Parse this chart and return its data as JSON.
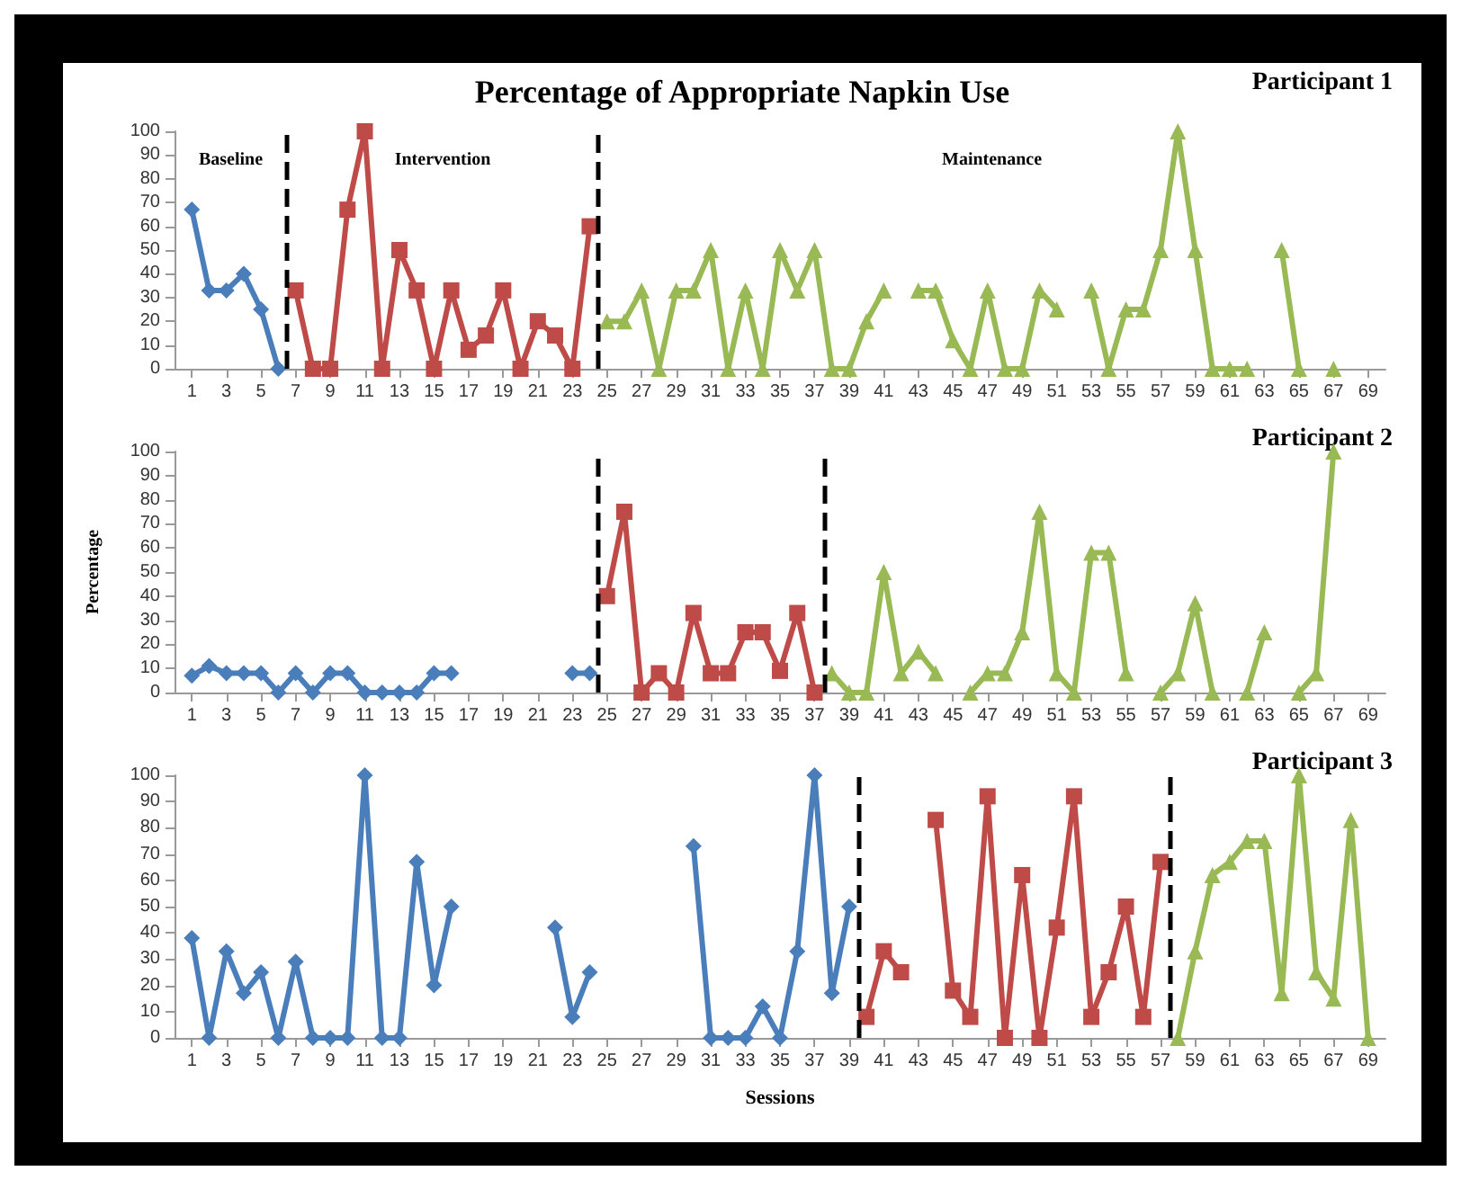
{
  "chart_data": [
    {
      "type": "line",
      "title": "Percentage of Appropriate Napkin Use",
      "xlim": [
        0,
        70
      ],
      "xticks": [
        1,
        3,
        5,
        7,
        9,
        11,
        13,
        15,
        17,
        19,
        21,
        23,
        25,
        27,
        29,
        31,
        33,
        35,
        37,
        39,
        41,
        43,
        45,
        47,
        49,
        51,
        53,
        55,
        57,
        59,
        61,
        63,
        65,
        67,
        69
      ],
      "ylim": [
        0,
        100
      ],
      "yticks": [
        0,
        10,
        20,
        30,
        40,
        50,
        60,
        70,
        80,
        90,
        100
      ],
      "grid": false,
      "annotations": [
        "Participant 1",
        "Baseline",
        "Intervention",
        "Maintenance"
      ],
      "ref_lines": [
        {
          "axis": "x",
          "value": 6.5,
          "color": "#000000",
          "line_style": "dashed"
        },
        {
          "axis": "x",
          "value": 24.5,
          "color": "#000000",
          "line_style": "dashed"
        }
      ],
      "series": [
        {
          "color": "#4a7ebb",
          "marker": "diamond",
          "x": [
            1,
            2,
            3,
            4,
            5,
            6
          ],
          "values": [
            67,
            33,
            33,
            40,
            25,
            0
          ]
        },
        {
          "color": "#be4b48",
          "marker": "square",
          "x": [
            7,
            8,
            9,
            10,
            11,
            12,
            13,
            14,
            15,
            16,
            17,
            18,
            19,
            20,
            21,
            22,
            23,
            24
          ],
          "values": [
            33,
            0,
            0,
            67,
            100,
            0,
            50,
            33,
            0,
            33,
            8,
            14,
            33,
            0,
            20,
            14,
            0,
            60
          ]
        },
        {
          "color": "#98b954",
          "marker": "triangle",
          "x": [
            25,
            26,
            27,
            28,
            29,
            30,
            31,
            32,
            33,
            34,
            35,
            36,
            37,
            38,
            39,
            40,
            41,
            42,
            43,
            44,
            45,
            46,
            47,
            48,
            49,
            50,
            51,
            52,
            53,
            54,
            55,
            56,
            57,
            58,
            59,
            60,
            61,
            62,
            63,
            64,
            65,
            66,
            67
          ],
          "values": [
            20,
            20,
            33,
            0,
            33,
            33,
            50,
            0,
            33,
            0,
            50,
            33,
            50,
            0,
            0,
            20,
            33,
            null,
            33,
            33,
            12,
            0,
            33,
            0,
            0,
            33,
            25,
            null,
            33,
            0,
            25,
            25,
            50,
            100,
            50,
            0,
            0,
            0,
            null,
            50,
            0,
            null,
            0
          ]
        }
      ]
    },
    {
      "type": "line",
      "ylabel": "Percentage",
      "xlim": [
        0,
        70
      ],
      "xticks": [
        1,
        3,
        5,
        7,
        9,
        11,
        13,
        15,
        17,
        19,
        21,
        23,
        25,
        27,
        29,
        31,
        33,
        35,
        37,
        39,
        41,
        43,
        45,
        47,
        49,
        51,
        53,
        55,
        57,
        59,
        61,
        63,
        65,
        67,
        69
      ],
      "ylim": [
        0,
        100
      ],
      "yticks": [
        0,
        10,
        20,
        30,
        40,
        50,
        60,
        70,
        80,
        90,
        100
      ],
      "grid": false,
      "annotations": [
        "Participant 2"
      ],
      "ref_lines": [
        {
          "axis": "x",
          "value": 24.5,
          "color": "#000000",
          "line_style": "dashed"
        },
        {
          "axis": "x",
          "value": 37.6,
          "color": "#000000",
          "line_style": "dashed"
        }
      ],
      "series": [
        {
          "color": "#4a7ebb",
          "marker": "diamond",
          "x": [
            1,
            2,
            3,
            4,
            5,
            6,
            7,
            8,
            9,
            10,
            11,
            12,
            13,
            14,
            15,
            16,
            17,
            18,
            19,
            20,
            21,
            22,
            23,
            24
          ],
          "values": [
            7,
            11,
            8,
            8,
            8,
            0,
            8,
            0,
            8,
            8,
            0,
            0,
            0,
            0,
            8,
            8,
            null,
            null,
            null,
            null,
            null,
            null,
            8,
            8
          ]
        },
        {
          "color": "#be4b48",
          "marker": "square",
          "x": [
            25,
            26,
            27,
            28,
            29,
            30,
            31,
            32,
            33,
            34,
            35,
            36,
            37
          ],
          "values": [
            40,
            75,
            0,
            8,
            0,
            33,
            8,
            8,
            25,
            25,
            9,
            33,
            0
          ]
        },
        {
          "color": "#98b954",
          "marker": "triangle",
          "x": [
            38,
            39,
            40,
            41,
            42,
            43,
            44,
            45,
            46,
            47,
            48,
            49,
            50,
            51,
            52,
            53,
            54,
            55,
            56,
            57,
            58,
            59,
            60,
            61,
            62,
            63,
            64,
            65,
            66,
            67
          ],
          "values": [
            8,
            0,
            0,
            50,
            8,
            17,
            8,
            null,
            0,
            8,
            8,
            25,
            75,
            8,
            0,
            58,
            58,
            8,
            null,
            0,
            8,
            37,
            0,
            null,
            0,
            25,
            null,
            0,
            8,
            100
          ]
        }
      ]
    },
    {
      "type": "line",
      "xlabel": "Sessions",
      "xlim": [
        0,
        70
      ],
      "xticks": [
        1,
        3,
        5,
        7,
        9,
        11,
        13,
        15,
        17,
        19,
        21,
        23,
        25,
        27,
        29,
        31,
        33,
        35,
        37,
        39,
        41,
        43,
        45,
        47,
        49,
        51,
        53,
        55,
        57,
        59,
        61,
        63,
        65,
        67,
        69
      ],
      "ylim": [
        0,
        100
      ],
      "yticks": [
        0,
        10,
        20,
        30,
        40,
        50,
        60,
        70,
        80,
        90,
        100
      ],
      "grid": false,
      "annotations": [
        "Participant 3"
      ],
      "ref_lines": [
        {
          "axis": "x",
          "value": 39.5,
          "color": "#000000",
          "line_style": "dashed"
        },
        {
          "axis": "x",
          "value": 57.5,
          "color": "#000000",
          "line_style": "dashed"
        }
      ],
      "series": [
        {
          "color": "#4a7ebb",
          "marker": "diamond",
          "x": [
            1,
            2,
            3,
            4,
            5,
            6,
            7,
            8,
            9,
            10,
            11,
            12,
            13,
            14,
            15,
            16,
            17,
            18,
            19,
            20,
            21,
            22,
            23,
            24,
            25,
            26,
            27,
            28,
            29,
            30,
            31,
            32,
            33,
            34,
            35,
            36,
            37,
            38,
            39
          ],
          "values": [
            38,
            0,
            33,
            17,
            25,
            0,
            29,
            0,
            0,
            0,
            100,
            0,
            0,
            67,
            20,
            50,
            null,
            null,
            null,
            null,
            null,
            42,
            8,
            25,
            null,
            null,
            null,
            null,
            null,
            73,
            0,
            0,
            0,
            12,
            0,
            33,
            100,
            17,
            50
          ]
        },
        {
          "color": "#be4b48",
          "marker": "square",
          "x": [
            40,
            41,
            42,
            43,
            44,
            45,
            46,
            47,
            48,
            49,
            50,
            51,
            52,
            53,
            54,
            55,
            56,
            57
          ],
          "values": [
            8,
            33,
            25,
            null,
            83,
            18,
            8,
            92,
            0,
            62,
            0,
            42,
            92,
            8,
            25,
            50,
            8,
            67
          ]
        },
        {
          "color": "#98b954",
          "marker": "triangle",
          "x": [
            58,
            59,
            60,
            61,
            62,
            63,
            64,
            65,
            66,
            67,
            68,
            69
          ],
          "values": [
            0,
            33,
            62,
            67,
            75,
            75,
            17,
            100,
            25,
            15,
            83,
            0
          ]
        }
      ]
    }
  ]
}
